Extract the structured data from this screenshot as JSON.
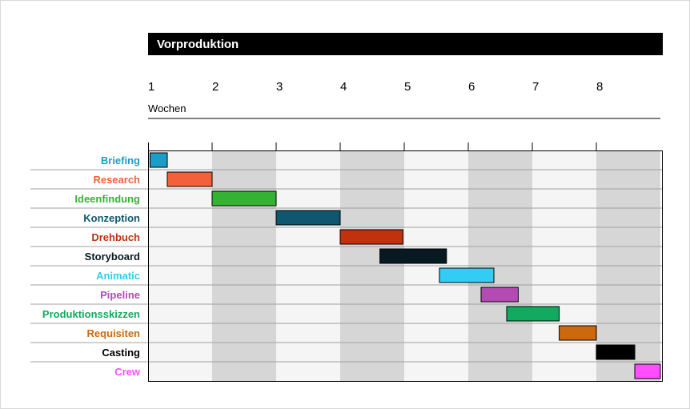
{
  "chart_data": {
    "type": "gantt",
    "title": "Vorproduktion",
    "xlabel": "Wochen",
    "x_ticks": [
      "1",
      "2",
      "3",
      "4",
      "5",
      "6",
      "7",
      "8"
    ],
    "xlim": [
      1,
      9
    ],
    "grid": true,
    "tasks": [
      {
        "name": "Briefing",
        "start": 1.03,
        "end": 1.3,
        "color": "#1a9ec7"
      },
      {
        "name": "Research",
        "start": 1.3,
        "end": 2.0,
        "color": "#f2613c"
      },
      {
        "name": "Ideenfindung",
        "start": 2.0,
        "end": 3.0,
        "color": "#33b233"
      },
      {
        "name": "Konzeption",
        "start": 3.0,
        "end": 4.0,
        "color": "#0f5770"
      },
      {
        "name": "Drehbuch",
        "start": 4.0,
        "end": 4.98,
        "color": "#c1310d"
      },
      {
        "name": "Storyboard",
        "start": 4.62,
        "end": 5.66,
        "color": "#081a21"
      },
      {
        "name": "Animatic",
        "start": 5.55,
        "end": 6.4,
        "color": "#33ccf2"
      },
      {
        "name": "Pipeline",
        "start": 6.2,
        "end": 6.78,
        "color": "#b34bb3"
      },
      {
        "name": "Produktionsskizzen",
        "start": 6.6,
        "end": 7.42,
        "color": "#11aa5e"
      },
      {
        "name": "Requisiten",
        "start": 7.42,
        "end": 8.0,
        "color": "#cc690e"
      },
      {
        "name": "Casting",
        "start": 8.0,
        "end": 8.6,
        "color": "#000000"
      },
      {
        "name": "Crew",
        "start": 8.6,
        "end": 9.0,
        "color": "#ff4dff"
      }
    ]
  }
}
